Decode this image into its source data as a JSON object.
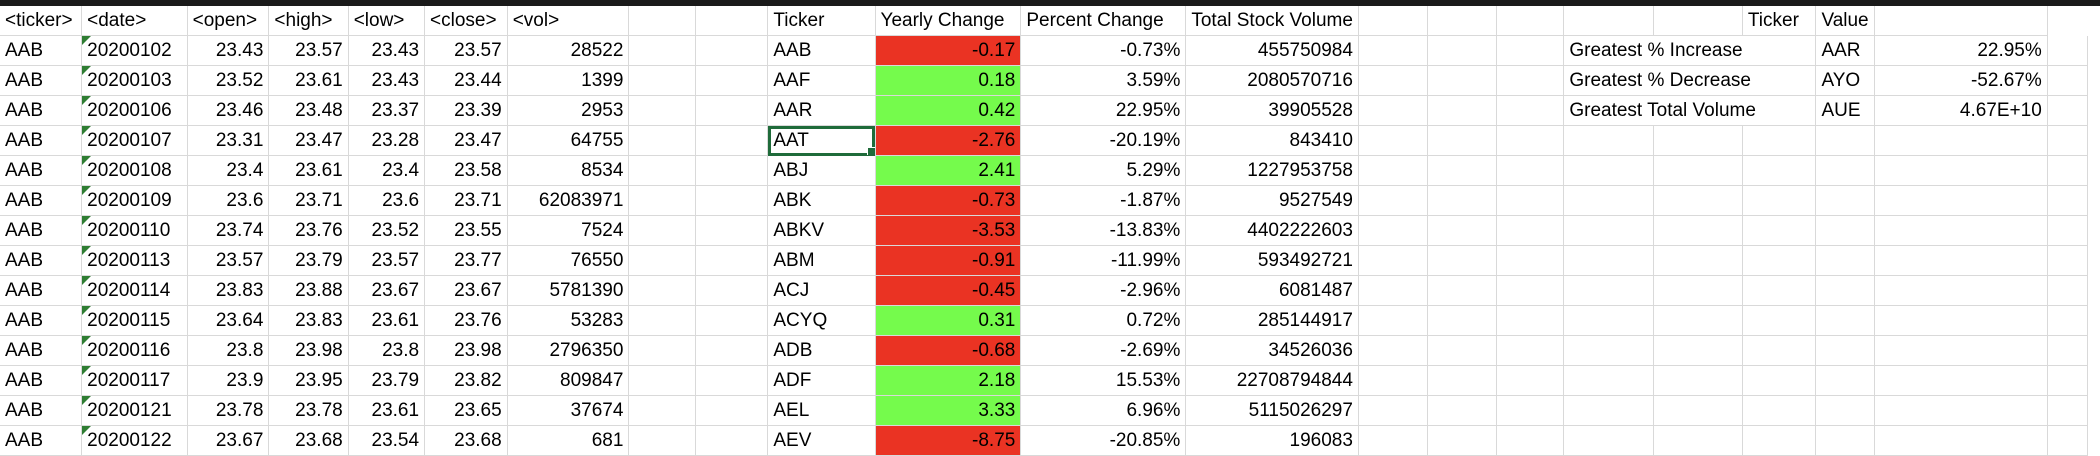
{
  "headers": {
    "raw": [
      "<ticker>",
      "<date>",
      "<open>",
      "<high>",
      "<low>",
      "<close>",
      "<vol>"
    ],
    "summary": [
      "Ticker",
      "Yearly Change",
      "Percent Change",
      "Total Stock Volume"
    ],
    "greatest": [
      "Ticker",
      "Value"
    ]
  },
  "raw_rows": [
    [
      "AAB",
      "20200102",
      "23.43",
      "23.57",
      "23.43",
      "23.57",
      "28522"
    ],
    [
      "AAB",
      "20200103",
      "23.52",
      "23.61",
      "23.43",
      "23.44",
      "1399"
    ],
    [
      "AAB",
      "20200106",
      "23.46",
      "23.48",
      "23.37",
      "23.39",
      "2953"
    ],
    [
      "AAB",
      "20200107",
      "23.31",
      "23.47",
      "23.28",
      "23.47",
      "64755"
    ],
    [
      "AAB",
      "20200108",
      "23.4",
      "23.61",
      "23.4",
      "23.58",
      "8534"
    ],
    [
      "AAB",
      "20200109",
      "23.6",
      "23.71",
      "23.6",
      "23.71",
      "62083971"
    ],
    [
      "AAB",
      "20200110",
      "23.74",
      "23.76",
      "23.52",
      "23.55",
      "7524"
    ],
    [
      "AAB",
      "20200113",
      "23.57",
      "23.79",
      "23.57",
      "23.77",
      "76550"
    ],
    [
      "AAB",
      "20200114",
      "23.83",
      "23.88",
      "23.67",
      "23.67",
      "5781390"
    ],
    [
      "AAB",
      "20200115",
      "23.64",
      "23.83",
      "23.61",
      "23.76",
      "53283"
    ],
    [
      "AAB",
      "20200116",
      "23.8",
      "23.98",
      "23.8",
      "23.98",
      "2796350"
    ],
    [
      "AAB",
      "20200117",
      "23.9",
      "23.95",
      "23.79",
      "23.82",
      "809847"
    ],
    [
      "AAB",
      "20200121",
      "23.78",
      "23.78",
      "23.61",
      "23.65",
      "37674"
    ],
    [
      "AAB",
      "20200122",
      "23.67",
      "23.68",
      "23.54",
      "23.68",
      "681"
    ]
  ],
  "summary_rows": [
    {
      "ticker": "AAB",
      "change": "-0.17",
      "pct": "-0.73%",
      "vol": "455750984",
      "color": "#ea3323"
    },
    {
      "ticker": "AAF",
      "change": "0.18",
      "pct": "3.59%",
      "vol": "2080570716",
      "color": "#75fb4c"
    },
    {
      "ticker": "AAR",
      "change": "0.42",
      "pct": "22.95%",
      "vol": "39905528",
      "color": "#75fb4c"
    },
    {
      "ticker": "AAT",
      "change": "-2.76",
      "pct": "-20.19%",
      "vol": "843410",
      "color": "#ea3323"
    },
    {
      "ticker": "ABJ",
      "change": "2.41",
      "pct": "5.29%",
      "vol": "1227953758",
      "color": "#75fb4c"
    },
    {
      "ticker": "ABK",
      "change": "-0.73",
      "pct": "-1.87%",
      "vol": "9527549",
      "color": "#ea3323"
    },
    {
      "ticker": "ABKV",
      "change": "-3.53",
      "pct": "-13.83%",
      "vol": "4402222603",
      "color": "#ea3323"
    },
    {
      "ticker": "ABM",
      "change": "-0.91",
      "pct": "-11.99%",
      "vol": "593492721",
      "color": "#ea3323"
    },
    {
      "ticker": "ACJ",
      "change": "-0.45",
      "pct": "-2.96%",
      "vol": "6081487",
      "color": "#ea3323"
    },
    {
      "ticker": "ACYQ",
      "change": "0.31",
      "pct": "0.72%",
      "vol": "285144917",
      "color": "#75fb4c"
    },
    {
      "ticker": "ADB",
      "change": "-0.68",
      "pct": "-2.69%",
      "vol": "34526036",
      "color": "#ea3323"
    },
    {
      "ticker": "ADF",
      "change": "2.18",
      "pct": "15.53%",
      "vol": "22708794844",
      "color": "#75fb4c"
    },
    {
      "ticker": "AEL",
      "change": "3.33",
      "pct": "6.96%",
      "vol": "5115026297",
      "color": "#75fb4c"
    },
    {
      "ticker": "AEV",
      "change": "-8.75",
      "pct": "-20.85%",
      "vol": "196083",
      "color": "#ea3323"
    }
  ],
  "greatest_rows": [
    {
      "label": "Greatest % Increase",
      "ticker": "AAR",
      "value": "22.95%"
    },
    {
      "label": "Greatest % Decrease",
      "ticker": "AYO",
      "value": "-52.67%"
    },
    {
      "label": "Greatest Total Volume",
      "ticker": "AUE",
      "value": "4.67E+10"
    }
  ],
  "selected_cell": "AAT"
}
